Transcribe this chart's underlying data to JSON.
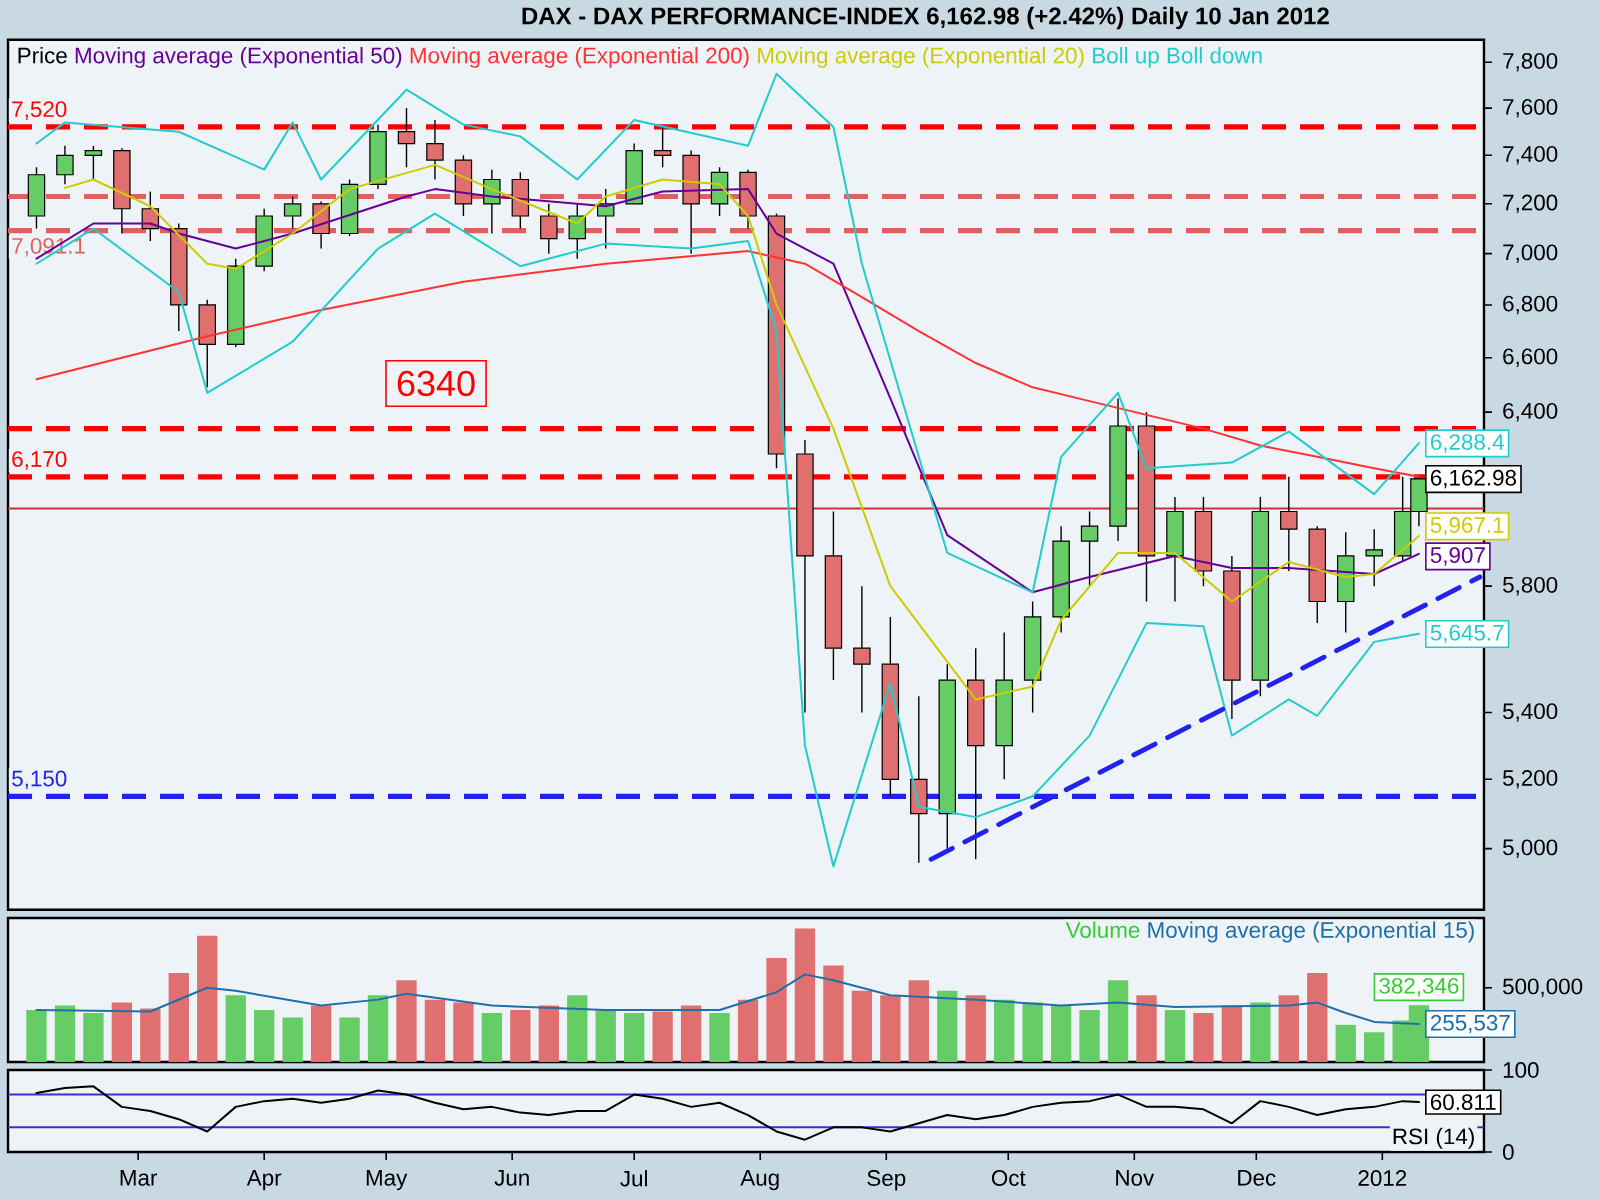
{
  "chart_data": [
    {
      "type": "candlestick",
      "title": "DAX - DAX PERFORMANCE-INDEX    6,162.98 (+2.42%)    Daily  10 Jan 2012",
      "x": [
        "2011-02-04",
        "2011-02-11",
        "2011-02-18",
        "2011-02-25",
        "2011-03-04",
        "2011-03-11",
        "2011-03-18",
        "2011-03-25",
        "2011-04-01",
        "2011-04-08",
        "2011-04-15",
        "2011-04-22",
        "2011-04-29",
        "2011-05-06",
        "2011-05-13",
        "2011-05-20",
        "2011-05-27",
        "2011-06-03",
        "2011-06-10",
        "2011-06-17",
        "2011-06-24",
        "2011-07-01",
        "2011-07-08",
        "2011-07-15",
        "2011-07-22",
        "2011-07-29",
        "2011-08-05",
        "2011-08-12",
        "2011-08-19",
        "2011-08-26",
        "2011-09-02",
        "2011-09-09",
        "2011-09-16",
        "2011-09-23",
        "2011-09-30",
        "2011-10-07",
        "2011-10-14",
        "2011-10-21",
        "2011-10-28",
        "2011-11-04",
        "2011-11-11",
        "2011-11-18",
        "2011-11-25",
        "2011-12-02",
        "2011-12-09",
        "2011-12-16",
        "2011-12-23",
        "2011-12-30",
        "2012-01-06",
        "2012-01-10"
      ],
      "series": [
        {
          "name": "Price",
          "color": "#000000",
          "ohlc": [
            [
              7150,
              7350,
              7100,
              7320
            ],
            [
              7320,
              7440,
              7280,
              7400
            ],
            [
              7400,
              7440,
              7300,
              7420
            ],
            [
              7420,
              7430,
              7080,
              7180
            ],
            [
              7180,
              7250,
              7050,
              7100
            ],
            [
              7100,
              7120,
              6700,
              6800
            ],
            [
              6800,
              6820,
              6490,
              6650
            ],
            [
              6650,
              6980,
              6640,
              6950
            ],
            [
              6950,
              7180,
              6930,
              7150
            ],
            [
              7150,
              7230,
              7100,
              7200
            ],
            [
              7200,
              7210,
              7020,
              7080
            ],
            [
              7080,
              7300,
              7070,
              7280
            ],
            [
              7280,
              7530,
              7260,
              7500
            ],
            [
              7500,
              7600,
              7350,
              7450
            ],
            [
              7450,
              7550,
              7300,
              7380
            ],
            [
              7380,
              7400,
              7150,
              7200
            ],
            [
              7200,
              7340,
              7080,
              7300
            ],
            [
              7300,
              7330,
              7100,
              7150
            ],
            [
              7150,
              7200,
              7000,
              7060
            ],
            [
              7060,
              7200,
              6980,
              7150
            ],
            [
              7150,
              7260,
              7020,
              7200
            ],
            [
              7200,
              7450,
              7200,
              7420
            ],
            [
              7420,
              7520,
              7350,
              7400
            ],
            [
              7400,
              7420,
              7000,
              7200
            ],
            [
              7200,
              7350,
              7150,
              7330
            ],
            [
              7330,
              7340,
              7100,
              7150
            ],
            [
              7150,
              7160,
              6200,
              6250
            ],
            [
              6250,
              6300,
              5400,
              5900
            ],
            [
              5900,
              6050,
              5500,
              5600
            ],
            [
              5600,
              5800,
              5400,
              5550
            ],
            [
              5550,
              5700,
              5150,
              5200
            ],
            [
              5200,
              5450,
              4960,
              5100
            ],
            [
              5100,
              5550,
              5000,
              5500
            ],
            [
              5500,
              5600,
              4970,
              5300
            ],
            [
              5300,
              5650,
              5200,
              5500
            ],
            [
              5500,
              5750,
              5400,
              5700
            ],
            [
              5700,
              6000,
              5650,
              5950
            ],
            [
              5950,
              6050,
              5800,
              6000
            ],
            [
              6000,
              6450,
              5950,
              6350
            ],
            [
              6350,
              6400,
              5750,
              5900
            ],
            [
              5900,
              6100,
              5750,
              6050
            ],
            [
              6050,
              6100,
              5800,
              5850
            ],
            [
              5850,
              5900,
              5380,
              5500
            ],
            [
              5500,
              6100,
              5450,
              6050
            ],
            [
              6050,
              6170,
              5850,
              5990
            ],
            [
              5990,
              6000,
              5680,
              5750
            ],
            [
              5750,
              5980,
              5650,
              5900
            ],
            [
              5900,
              5990,
              5800,
              5920
            ],
            [
              5900,
              6170,
              5880,
              6050
            ],
            [
              6050,
              6170,
              6000,
              6162.98
            ]
          ],
          "colors": [
            "#66cc66",
            "#66cc66",
            "#66cc66",
            "#e07070",
            "#e07070",
            "#e07070",
            "#e07070",
            "#66cc66",
            "#66cc66",
            "#66cc66",
            "#e07070",
            "#66cc66",
            "#66cc66",
            "#e07070",
            "#e07070",
            "#e07070",
            "#66cc66",
            "#e07070",
            "#e07070",
            "#66cc66",
            "#66cc66",
            "#66cc66",
            "#e07070",
            "#e07070",
            "#66cc66",
            "#e07070",
            "#e07070",
            "#e07070",
            "#e07070",
            "#e07070",
            "#e07070",
            "#e07070",
            "#66cc66",
            "#e07070",
            "#66cc66",
            "#66cc66",
            "#66cc66",
            "#66cc66",
            "#66cc66",
            "#e07070",
            "#66cc66",
            "#e07070",
            "#e07070",
            "#66cc66",
            "#e07070",
            "#e07070",
            "#66cc66",
            "#66cc66",
            "#66cc66",
            "#66cc66"
          ],
          "value_labels": [
            null,
            null,
            null,
            null,
            null,
            null,
            null,
            null,
            null,
            null,
            null,
            null,
            null,
            null,
            null,
            null,
            null,
            null,
            null,
            null,
            null,
            null,
            null,
            null,
            null,
            null,
            null,
            null,
            null,
            null,
            null,
            null,
            null,
            null,
            null,
            null,
            null,
            null,
            null,
            null,
            null,
            null,
            null,
            null,
            null,
            null,
            null,
            null,
            null,
            "6,162.98"
          ]
        },
        {
          "type": "line",
          "name": "Moving average (Exponential 50)",
          "color": "#660099",
          "x": [
            "2011-02-04",
            "2011-02-18",
            "2011-03-04",
            "2011-03-11",
            "2011-03-25",
            "2011-04-08",
            "2011-05-06",
            "2011-05-13",
            "2011-05-27",
            "2011-06-24",
            "2011-07-08",
            "2011-07-29",
            "2011-08-05",
            "2011-08-19",
            "2011-09-02",
            "2011-09-16",
            "2011-10-07",
            "2011-10-21",
            "2011-11-11",
            "2011-11-25",
            "2011-12-09",
            "2011-12-30",
            "2012-01-10"
          ],
          "values": [
            6980,
            7120,
            7120,
            7080,
            7020,
            7080,
            7230,
            7260,
            7230,
            7190,
            7250,
            7260,
            7080,
            6960,
            6450,
            5970,
            5780,
            5830,
            5900,
            5860,
            5860,
            5840,
            5907
          ],
          "value_labels": [
            null,
            null,
            null,
            null,
            null,
            null,
            null,
            null,
            null,
            null,
            null,
            null,
            null,
            null,
            null,
            null,
            null,
            null,
            null,
            null,
            null,
            null,
            "5,907"
          ]
        },
        {
          "type": "line",
          "name": "Moving average (Exponential 200)",
          "color": "#ff3333",
          "x": [
            "2011-02-04",
            "2011-03-18",
            "2011-04-15",
            "2011-05-20",
            "2011-06-24",
            "2011-07-29",
            "2011-08-12",
            "2011-08-26",
            "2011-09-09",
            "2011-09-23",
            "2011-10-07",
            "2011-10-21",
            "2011-11-04",
            "2011-11-18",
            "2011-12-02",
            "2011-12-16",
            "2011-12-30",
            "2012-01-10"
          ],
          "values": [
            6520,
            6680,
            6780,
            6890,
            6960,
            7010,
            6960,
            6830,
            6700,
            6580,
            6490,
            6440,
            6390,
            6340,
            6280,
            6240,
            6200,
            6170
          ]
        },
        {
          "type": "line",
          "name": "Moving average (Exponential 20)",
          "color": "#cccc00",
          "x": [
            "2011-02-11",
            "2011-02-18",
            "2011-03-04",
            "2011-03-18",
            "2011-03-25",
            "2011-04-08",
            "2011-04-22",
            "2011-05-13",
            "2011-05-27",
            "2011-06-17",
            "2011-06-24",
            "2011-07-08",
            "2011-07-22",
            "2011-07-29",
            "2011-08-05",
            "2011-08-19",
            "2011-09-02",
            "2011-09-23",
            "2011-10-07",
            "2011-10-14",
            "2011-10-28",
            "2011-11-11",
            "2011-11-25",
            "2011-12-09",
            "2011-12-23",
            "2011-12-30",
            "2012-01-10"
          ],
          "values": [
            7265,
            7300,
            7190,
            6960,
            6940,
            7080,
            7260,
            7360,
            7260,
            7120,
            7230,
            7300,
            7280,
            7150,
            6800,
            6340,
            5800,
            5440,
            5480,
            5690,
            5910,
            5910,
            5750,
            5880,
            5830,
            5840,
            5967.1
          ],
          "value_labels": [
            null,
            null,
            null,
            null,
            null,
            null,
            null,
            null,
            null,
            null,
            null,
            null,
            null,
            null,
            null,
            null,
            null,
            null,
            null,
            null,
            null,
            null,
            null,
            null,
            null,
            null,
            "5,967.1"
          ]
        },
        {
          "type": "line",
          "name": "Boll up",
          "color": "#22cccc",
          "x": [
            "2011-02-04",
            "2011-02-11",
            "2011-03-11",
            "2011-04-01",
            "2011-04-08",
            "2011-04-15",
            "2011-05-06",
            "2011-05-20",
            "2011-06-03",
            "2011-06-17",
            "2011-07-01",
            "2011-07-29",
            "2011-08-05",
            "2011-08-19",
            "2011-08-26",
            "2011-09-09",
            "2011-09-16",
            "2011-10-07",
            "2011-10-14",
            "2011-10-28",
            "2011-11-04",
            "2011-11-25",
            "2011-12-09",
            "2011-12-30",
            "2012-01-10"
          ],
          "values": [
            7450,
            7540,
            7500,
            7340,
            7540,
            7300,
            7680,
            7530,
            7480,
            7300,
            7550,
            7440,
            7750,
            7520,
            6960,
            6240,
            5910,
            5780,
            6240,
            6470,
            6200,
            6220,
            6330,
            6110,
            6288.4
          ],
          "value_labels": [
            null,
            null,
            null,
            null,
            null,
            null,
            null,
            null,
            null,
            null,
            null,
            null,
            null,
            null,
            null,
            null,
            null,
            null,
            null,
            null,
            null,
            null,
            null,
            null,
            "6,288.4"
          ]
        },
        {
          "type": "line",
          "name": "Boll down",
          "color": "#22cccc",
          "x": [
            "2011-02-04",
            "2011-02-18",
            "2011-03-11",
            "2011-03-18",
            "2011-04-08",
            "2011-04-29",
            "2011-05-13",
            "2011-06-03",
            "2011-06-24",
            "2011-07-15",
            "2011-07-29",
            "2011-08-05",
            "2011-08-12",
            "2011-08-19",
            "2011-09-02",
            "2011-09-09",
            "2011-09-23",
            "2011-10-07",
            "2011-10-21",
            "2011-11-04",
            "2011-11-18",
            "2011-11-25",
            "2011-12-09",
            "2011-12-16",
            "2011-12-30",
            "2012-01-10"
          ],
          "values": [
            6960,
            7100,
            6850,
            6470,
            6660,
            7020,
            7160,
            6950,
            7040,
            7020,
            7050,
            6700,
            5300,
            4950,
            5490,
            5120,
            5090,
            5150,
            5330,
            5680,
            5670,
            5330,
            5440,
            5390,
            5620,
            5645.7
          ],
          "value_labels": [
            null,
            null,
            null,
            null,
            null,
            null,
            null,
            null,
            null,
            null,
            null,
            null,
            null,
            null,
            null,
            null,
            null,
            null,
            null,
            null,
            null,
            null,
            null,
            null,
            null,
            "5,645.7"
          ]
        },
        {
          "type": "line",
          "color": "#2222ee",
          "line_style": "dashed",
          "x": [
            "2011-09-12",
            "2012-01-25"
          ],
          "values": [
            4970,
            5830
          ]
        }
      ],
      "ref_lines": [
        {
          "axis": "y",
          "value": 7520,
          "label": "7,520",
          "color": "#ff0000",
          "line_style": "dashed"
        },
        {
          "axis": "y",
          "value": 7230,
          "color": "#e06060",
          "line_style": "dashed"
        },
        {
          "axis": "y",
          "value": 7091.1,
          "label": "7,091.1",
          "color": "#e06060",
          "line_style": "dashed"
        },
        {
          "axis": "y",
          "value": 6340,
          "color": "#ff0000",
          "line_style": "dashed"
        },
        {
          "axis": "y",
          "value": 6170,
          "label": "6,170",
          "color": "#ff0000",
          "line_style": "dashed"
        },
        {
          "axis": "y",
          "value": 6060,
          "color": "#cc3333",
          "line_style": "solid"
        },
        {
          "axis": "y",
          "value": 5150,
          "label": "5,150",
          "color": "#2222ee",
          "line_style": "dashed"
        }
      ],
      "annotations": [
        "6340"
      ],
      "log": "y",
      "ylim": [
        4830,
        7900
      ],
      "yticks": [
        {
          "value": 5000,
          "label": "5,000"
        },
        {
          "value": 5200,
          "label": "5,200"
        },
        {
          "value": 5400,
          "label": "5,400"
        },
        {
          "value": 5800,
          "label": "5,800"
        },
        {
          "value": 6400,
          "label": "6,400"
        },
        {
          "value": 6600,
          "label": "6,600"
        },
        {
          "value": 6800,
          "label": "6,800"
        },
        {
          "value": 7000,
          "label": "7,000"
        },
        {
          "value": 7200,
          "label": "7,200"
        },
        {
          "value": 7400,
          "label": "7,400"
        },
        {
          "value": 7600,
          "label": "7,600"
        },
        {
          "value": 7800,
          "label": "7,800"
        }
      ],
      "xlim": [
        "2011-01-28",
        "2012-01-26"
      ],
      "tick_labels": "y",
      "legend": "top left"
    },
    {
      "type": "bar",
      "x": [
        "2011-02-04",
        "2011-02-11",
        "2011-02-18",
        "2011-02-25",
        "2011-03-04",
        "2011-03-11",
        "2011-03-18",
        "2011-03-25",
        "2011-04-01",
        "2011-04-08",
        "2011-04-15",
        "2011-04-22",
        "2011-04-29",
        "2011-05-06",
        "2011-05-13",
        "2011-05-20",
        "2011-05-27",
        "2011-06-03",
        "2011-06-10",
        "2011-06-17",
        "2011-06-24",
        "2011-07-01",
        "2011-07-08",
        "2011-07-15",
        "2011-07-22",
        "2011-07-29",
        "2011-08-05",
        "2011-08-12",
        "2011-08-19",
        "2011-08-26",
        "2011-09-02",
        "2011-09-09",
        "2011-09-16",
        "2011-09-23",
        "2011-09-30",
        "2011-10-07",
        "2011-10-14",
        "2011-10-21",
        "2011-10-28",
        "2011-11-04",
        "2011-11-11",
        "2011-11-18",
        "2011-11-25",
        "2011-12-02",
        "2011-12-09",
        "2011-12-16",
        "2011-12-23",
        "2011-12-30",
        "2012-01-06",
        "2012-01-10"
      ],
      "series": [
        {
          "name": "Volume",
          "color": "#33cc33",
          "values": [
            350000,
            380000,
            330000,
            400000,
            360000,
            600000,
            850000,
            450000,
            350000,
            300000,
            380000,
            300000,
            450000,
            550000,
            420000,
            400000,
            330000,
            350000,
            380000,
            450000,
            350000,
            330000,
            340000,
            380000,
            330000,
            420000,
            700000,
            900000,
            650000,
            480000,
            450000,
            550000,
            480000,
            450000,
            420000,
            400000,
            380000,
            350000,
            550000,
            450000,
            350000,
            330000,
            380000,
            400000,
            450000,
            600000,
            250000,
            200000,
            280000,
            382346
          ],
          "colors": [
            "#66cc66",
            "#66cc66",
            "#66cc66",
            "#e07070",
            "#e07070",
            "#e07070",
            "#e07070",
            "#66cc66",
            "#66cc66",
            "#66cc66",
            "#e07070",
            "#66cc66",
            "#66cc66",
            "#e07070",
            "#e07070",
            "#e07070",
            "#66cc66",
            "#e07070",
            "#e07070",
            "#66cc66",
            "#66cc66",
            "#66cc66",
            "#e07070",
            "#e07070",
            "#66cc66",
            "#e07070",
            "#e07070",
            "#e07070",
            "#e07070",
            "#e07070",
            "#e07070",
            "#e07070",
            "#66cc66",
            "#e07070",
            "#66cc66",
            "#66cc66",
            "#66cc66",
            "#66cc66",
            "#66cc66",
            "#e07070",
            "#66cc66",
            "#e07070",
            "#e07070",
            "#66cc66",
            "#e07070",
            "#e07070",
            "#66cc66",
            "#66cc66",
            "#66cc66",
            "#66cc66"
          ],
          "value_labels": [
            null,
            null,
            null,
            null,
            null,
            null,
            null,
            null,
            null,
            null,
            null,
            null,
            null,
            null,
            null,
            null,
            null,
            null,
            null,
            null,
            null,
            null,
            null,
            null,
            null,
            null,
            null,
            null,
            null,
            null,
            null,
            null,
            null,
            null,
            null,
            null,
            null,
            null,
            null,
            null,
            null,
            null,
            null,
            null,
            null,
            null,
            null,
            null,
            null,
            "382,346"
          ]
        },
        {
          "type": "line",
          "name": "Moving average (Exponential 15)",
          "color": "#1f6fa8",
          "x": [
            "2011-02-04",
            "2011-03-04",
            "2011-03-18",
            "2011-03-25",
            "2011-04-15",
            "2011-04-29",
            "2011-05-06",
            "2011-05-27",
            "2011-06-24",
            "2011-07-22",
            "2011-08-05",
            "2011-08-12",
            "2011-08-19",
            "2011-09-02",
            "2011-09-23",
            "2011-10-14",
            "2011-10-28",
            "2011-11-11",
            "2011-12-09",
            "2011-12-16",
            "2011-12-23",
            "2011-12-30",
            "2012-01-10"
          ],
          "values": [
            350000,
            340000,
            500000,
            480000,
            380000,
            420000,
            460000,
            380000,
            350000,
            350000,
            470000,
            590000,
            550000,
            450000,
            420000,
            380000,
            400000,
            370000,
            380000,
            400000,
            330000,
            270000,
            255537
          ],
          "value_labels": [
            null,
            null,
            null,
            null,
            null,
            null,
            null,
            null,
            null,
            null,
            null,
            null,
            null,
            null,
            null,
            null,
            null,
            null,
            null,
            null,
            null,
            null,
            "255,537"
          ]
        }
      ],
      "ylim": [
        0,
        970000
      ],
      "yticks": [
        {
          "value": 500000,
          "label": "500,000"
        }
      ],
      "xlim": [
        "2011-01-28",
        "2012-01-26"
      ],
      "tick_labels": "y",
      "legend": "top right"
    },
    {
      "type": "line",
      "x": [
        "2011-02-04",
        "2011-02-11",
        "2011-02-18",
        "2011-02-25",
        "2011-03-04",
        "2011-03-11",
        "2011-03-18",
        "2011-03-25",
        "2011-04-01",
        "2011-04-08",
        "2011-04-15",
        "2011-04-22",
        "2011-04-29",
        "2011-05-06",
        "2011-05-13",
        "2011-05-20",
        "2011-05-27",
        "2011-06-03",
        "2011-06-10",
        "2011-06-17",
        "2011-06-24",
        "2011-07-01",
        "2011-07-08",
        "2011-07-15",
        "2011-07-22",
        "2011-07-29",
        "2011-08-05",
        "2011-08-12",
        "2011-08-19",
        "2011-08-26",
        "2011-09-02",
        "2011-09-09",
        "2011-09-16",
        "2011-09-23",
        "2011-09-30",
        "2011-10-07",
        "2011-10-14",
        "2011-10-21",
        "2011-10-28",
        "2011-11-04",
        "2011-11-11",
        "2011-11-18",
        "2011-11-25",
        "2011-12-02",
        "2011-12-09",
        "2011-12-16",
        "2011-12-23",
        "2011-12-30",
        "2012-01-06",
        "2012-01-10"
      ],
      "series": [
        {
          "name": "RSI (14)",
          "color": "#000000",
          "values": [
            72,
            78,
            80,
            55,
            50,
            40,
            25,
            55,
            62,
            65,
            60,
            65,
            75,
            70,
            60,
            52,
            55,
            48,
            45,
            50,
            50,
            70,
            65,
            55,
            60,
            45,
            25,
            15,
            30,
            30,
            25,
            35,
            45,
            40,
            45,
            55,
            60,
            62,
            70,
            55,
            55,
            52,
            35,
            62,
            55,
            45,
            52,
            55,
            62,
            60.811
          ],
          "value_labels": [
            null,
            null,
            null,
            null,
            null,
            null,
            null,
            null,
            null,
            null,
            null,
            null,
            null,
            null,
            null,
            null,
            null,
            null,
            null,
            null,
            null,
            null,
            null,
            null,
            null,
            null,
            null,
            null,
            null,
            null,
            null,
            null,
            null,
            null,
            null,
            null,
            null,
            null,
            null,
            null,
            null,
            null,
            null,
            null,
            null,
            null,
            null,
            null,
            null,
            "60.811"
          ]
        }
      ],
      "ref_lines": [
        {
          "axis": "y",
          "value": 70,
          "color": "#3333cc",
          "line_style": "solid"
        },
        {
          "axis": "y",
          "value": 30,
          "color": "#3333cc",
          "line_style": "solid"
        }
      ],
      "ylim": [
        0,
        100
      ],
      "yticks": [
        0,
        100
      ],
      "xlim": [
        "2011-01-28",
        "2012-01-26"
      ],
      "xticks": [
        {
          "value": "2011-03-01",
          "label": "Mar"
        },
        {
          "value": "2011-04-01",
          "label": "Apr"
        },
        {
          "value": "2011-05-01",
          "label": "May"
        },
        {
          "value": "2011-06-01",
          "label": "Jun"
        },
        {
          "value": "2011-07-01",
          "label": "Jul"
        },
        {
          "value": "2011-08-01",
          "label": "Aug"
        },
        {
          "value": "2011-09-01",
          "label": "Sep"
        },
        {
          "value": "2011-10-01",
          "label": "Oct"
        },
        {
          "value": "2011-11-01",
          "label": "Nov"
        },
        {
          "value": "2011-12-01",
          "label": "Dec"
        },
        {
          "value": "2012-01-01",
          "label": "2012"
        }
      ],
      "legend": "bottom right"
    }
  ]
}
